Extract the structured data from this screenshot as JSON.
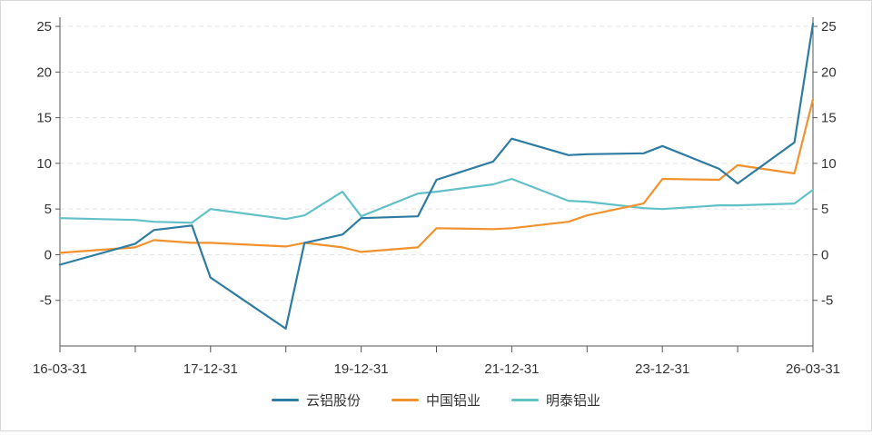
{
  "chart_data": {
    "type": "line",
    "title": "",
    "xlabel": "",
    "ylabel": "",
    "ylim": [
      -10,
      26
    ],
    "yticks": [
      -5,
      0,
      5,
      10,
      15,
      20,
      25
    ],
    "y2ticks": [
      -5,
      0,
      5,
      10,
      15,
      20,
      25
    ],
    "x_tick_labels": [
      "16-03-31",
      "17-12-31",
      "19-12-31",
      "21-12-31",
      "23-12-31",
      "26-03-31"
    ],
    "x_domain": [
      "2016-03-31",
      "2026-03-31"
    ],
    "grid": "horizontal dashed",
    "legend_position": "bottom",
    "series": [
      {
        "name": "云铝股份",
        "color": "#2e7ca1",
        "points": [
          [
            "2016-03-31",
            -1.1
          ],
          [
            "2017-03-31",
            1.2
          ],
          [
            "2017-06-30",
            2.7
          ],
          [
            "2017-12-31",
            3.2
          ],
          [
            "2018-03-31",
            -2.5
          ],
          [
            "2019-03-31",
            -8.1
          ],
          [
            "2019-06-30",
            1.3
          ],
          [
            "2019-12-31",
            2.2
          ],
          [
            "2020-03-31",
            4.0
          ],
          [
            "2020-12-31",
            4.2
          ],
          [
            "2021-03-31",
            8.2
          ],
          [
            "2021-12-31",
            10.2
          ],
          [
            "2022-03-31",
            12.7
          ],
          [
            "2022-12-31",
            10.9
          ],
          [
            "2023-03-31",
            11.0
          ],
          [
            "2023-12-31",
            11.1
          ],
          [
            "2024-03-31",
            11.9
          ],
          [
            "2024-12-31",
            9.4
          ],
          [
            "2025-03-31",
            7.8
          ],
          [
            "2025-12-31",
            12.3
          ],
          [
            "2026-03-31",
            25.3
          ]
        ]
      },
      {
        "name": "中国铝业",
        "color": "#f0922e",
        "points": [
          [
            "2016-03-31",
            0.2
          ],
          [
            "2017-03-31",
            0.8
          ],
          [
            "2017-06-30",
            1.6
          ],
          [
            "2017-12-31",
            1.3
          ],
          [
            "2018-03-31",
            1.3
          ],
          [
            "2019-03-31",
            0.9
          ],
          [
            "2019-06-30",
            1.3
          ],
          [
            "2019-12-31",
            0.8
          ],
          [
            "2020-03-31",
            0.3
          ],
          [
            "2020-12-31",
            0.8
          ],
          [
            "2021-03-31",
            2.9
          ],
          [
            "2021-12-31",
            2.8
          ],
          [
            "2022-03-31",
            2.9
          ],
          [
            "2022-12-31",
            3.6
          ],
          [
            "2023-03-31",
            4.3
          ],
          [
            "2023-12-31",
            5.6
          ],
          [
            "2024-03-31",
            8.3
          ],
          [
            "2024-12-31",
            8.2
          ],
          [
            "2025-03-31",
            9.8
          ],
          [
            "2025-12-31",
            8.9
          ],
          [
            "2026-03-31",
            17.0
          ]
        ]
      },
      {
        "name": "明泰铝业",
        "color": "#62c0c7",
        "points": [
          [
            "2016-03-31",
            4.0
          ],
          [
            "2017-03-31",
            3.8
          ],
          [
            "2017-06-30",
            3.6
          ],
          [
            "2017-12-31",
            3.5
          ],
          [
            "2018-03-31",
            5.0
          ],
          [
            "2019-03-31",
            3.9
          ],
          [
            "2019-06-30",
            4.3
          ],
          [
            "2019-12-31",
            6.9
          ],
          [
            "2020-03-31",
            4.2
          ],
          [
            "2020-12-31",
            6.7
          ],
          [
            "2021-03-31",
            6.9
          ],
          [
            "2021-12-31",
            7.7
          ],
          [
            "2022-03-31",
            8.3
          ],
          [
            "2022-12-31",
            5.9
          ],
          [
            "2023-03-31",
            5.8
          ],
          [
            "2023-12-31",
            5.1
          ],
          [
            "2024-03-31",
            5.0
          ],
          [
            "2024-12-31",
            5.4
          ],
          [
            "2025-03-31",
            5.4
          ],
          [
            "2025-12-31",
            5.6
          ],
          [
            "2026-03-31",
            7.1
          ]
        ]
      }
    ]
  }
}
